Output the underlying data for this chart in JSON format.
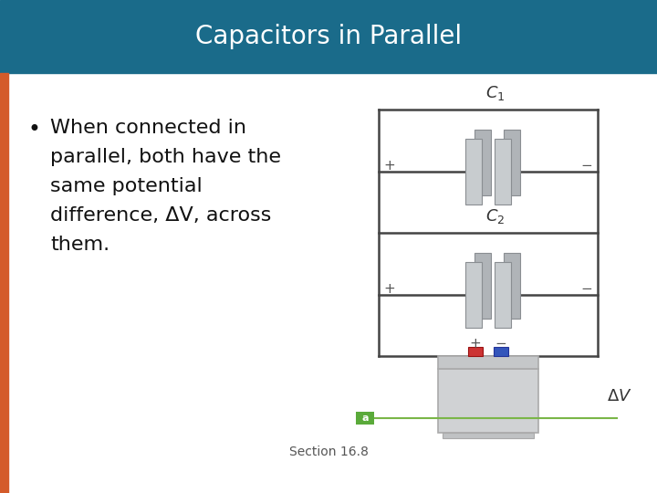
{
  "title": "Capacitors in Parallel",
  "title_bg_color": "#1a6b8a",
  "title_text_color": "#ffffff",
  "body_bg_color": "#ffffff",
  "left_bar_color": "#d45b2a",
  "bullet_text": "When connected in parallel, both have the same potential difference, ΔV, across them.",
  "footer_text": "Section 16.8",
  "footer_color": "#555555",
  "accent_bar_color": "#7ab648",
  "label_a_bg": "#5aaa3a",
  "label_a_text": "a",
  "wire_color": "#444444",
  "plus_minus_color": "#555555",
  "cap_front_color": "#c8cccf",
  "cap_back_color": "#b0b4b8",
  "cap_edge_color": "#8a8e92",
  "bat_body_color": "#d0d2d4",
  "bat_top_color": "#c5c7c9",
  "bat_red_color": "#cc3333",
  "bat_blue_color": "#3355bb",
  "delta_v_color": "#333333",
  "c_label_color": "#333333"
}
